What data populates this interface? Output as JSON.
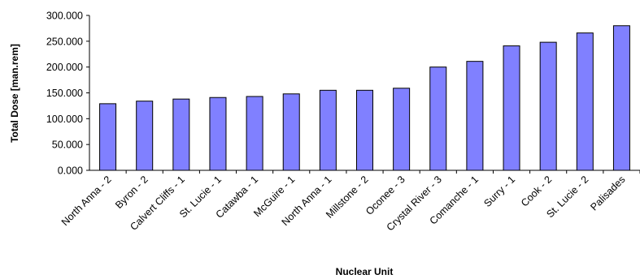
{
  "chart_data": {
    "type": "bar",
    "xlabel": "Nuclear Unit",
    "ylabel": "Total Dose [man.rem]",
    "ylim": [
      0,
      300
    ],
    "ytick_values": [
      0,
      50,
      100,
      150,
      200,
      250,
      300
    ],
    "ytick_labels": [
      "0.000",
      "50.000",
      "100.000",
      "150.000",
      "200.000",
      "250.000",
      "300.000"
    ],
    "categories": [
      "North Anna - 2",
      "Byron - 2",
      "Calvert Cliffs - 1",
      "St. Lucie - 1",
      "Catawba - 1",
      "McGuire - 1",
      "North Anna - 1",
      "Millstone - 2",
      "Oconee - 3",
      "Crystal River - 3",
      "Comanche - 1",
      "Surry - 1",
      "Cook - 2",
      "St. Lucie - 2",
      "Palisades"
    ],
    "values": [
      129,
      134,
      138,
      141,
      143,
      148,
      155,
      155,
      159,
      200,
      211,
      241,
      248,
      266,
      280
    ],
    "bar_color": "#8080ff",
    "bar_edge_color": "#000000",
    "grid": false,
    "legend": false
  }
}
